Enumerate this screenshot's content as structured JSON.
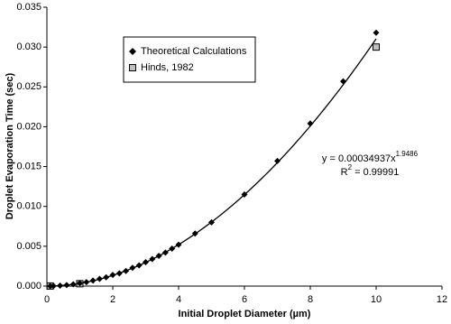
{
  "chart_data": {
    "type": "scatter",
    "x_label": "Initial Droplet Diameter (µm)",
    "y_label": "Droplet Evaporation Time (sec)",
    "xlim": [
      0,
      12
    ],
    "xticks": [
      0,
      2,
      4,
      6,
      8,
      10,
      12
    ],
    "ylim": [
      0,
      0.035
    ],
    "yticks": [
      {
        "value": 0,
        "label": "0.000"
      },
      {
        "value": 0.005,
        "label": "0.005"
      },
      {
        "value": 0.01,
        "label": "0.010"
      },
      {
        "value": 0.015,
        "label": "0.015"
      },
      {
        "value": 0.02,
        "label": "0.020"
      },
      {
        "value": 0.025,
        "label": "0.025"
      },
      {
        "value": 0.03,
        "label": "0.030"
      },
      {
        "value": 0.035,
        "label": "0.035"
      }
    ],
    "grid": false,
    "series": [
      {
        "name": "Theoretical Calculations",
        "color": "#000000",
        "marker": "diamond",
        "x": [
          0.1,
          0.2,
          0.4,
          0.6,
          0.8,
          1.0,
          1.2,
          1.4,
          1.6,
          1.8,
          2.0,
          2.2,
          2.4,
          2.6,
          2.8,
          3.0,
          3.2,
          3.4,
          3.6,
          3.8,
          4.0,
          4.5,
          5,
          6,
          7,
          8,
          9,
          10
        ],
        "values": [
          4e-06,
          2e-05,
          6e-05,
          0.00013,
          0.00023,
          0.00035,
          0.0005,
          0.0007,
          0.0009,
          0.0011,
          0.0014,
          0.0016,
          0.0019,
          0.0023,
          0.0026,
          0.003,
          0.0034,
          0.0038,
          0.0042,
          0.0047,
          0.0052,
          0.0066,
          0.008,
          0.0115,
          0.0157,
          0.0204,
          0.0257,
          0.0318
        ]
      },
      {
        "name": "Hinds, 1982",
        "color": "#c0c0c0",
        "marker": "square",
        "x": [
          0.1,
          1,
          10
        ],
        "values": [
          1e-05,
          0.0003,
          0.03
        ]
      }
    ],
    "fit": {
      "lhs": "y = ",
      "coefficient": 0.00034937,
      "variable": "x",
      "exponent": 1.9486,
      "r2_symbol": "R",
      "r2_power": "2",
      "r2_equals": " = ",
      "r2": 0.99991
    }
  }
}
